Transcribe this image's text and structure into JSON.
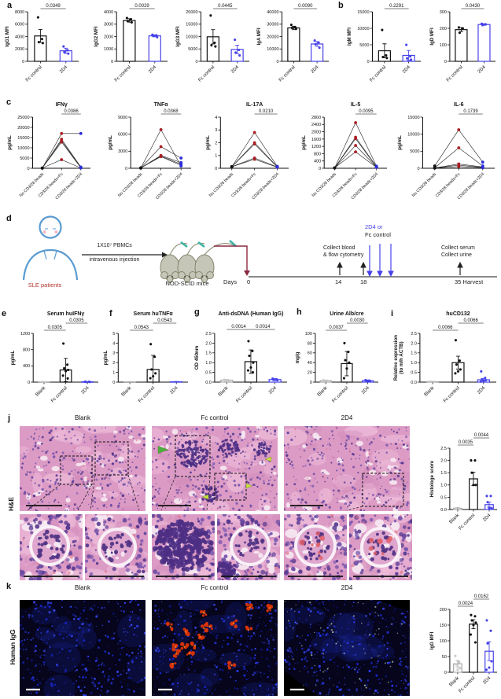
{
  "panels": {
    "a": "a",
    "b": "b",
    "c": "c",
    "d": "d",
    "e": "e",
    "f": "f",
    "g": "g",
    "h": "h",
    "i": "i",
    "j": "j",
    "k": "k"
  },
  "colors": {
    "accent_blue": "#4742e8",
    "red_dot": "#aa1f24",
    "maroon": "#8b2842",
    "green_arrow": "#4cae3e",
    "yellow_green_arrow": "#c6e33c",
    "human_outline": "#5b9bd0",
    "sle_red": "#b5332e"
  },
  "schematic": {
    "patients_label": "SLE patients",
    "injection_line1": "1X10⁷ PBMCs",
    "injection_line2": "intravenous injection",
    "mice_label": "NOD-SCID mice",
    "days_label": "Days",
    "day0": "0",
    "day14": "14",
    "day18": "18",
    "day35": "35 Harvest",
    "collect_blood_line1": "Collect blood",
    "collect_blood_line2": "& flow cytometry",
    "treatment_line1": "2D4 or",
    "treatment_line2": "Fc control",
    "collect_end_line1": "Collect serum",
    "collect_end_line2": "Collect urine"
  },
  "histology": {
    "row_label": "H&E",
    "columns": [
      "Blank",
      "Fc control",
      "2D4"
    ]
  },
  "fluorescence": {
    "row_label": "Human IgG",
    "columns": [
      "Blank",
      "Fc control",
      "2D4"
    ]
  },
  "chart_data": [
    {
      "id": "igg1",
      "type": "bar",
      "ylabel": "IgG1 MFI",
      "ylim": [
        0,
        8000
      ],
      "yticks": [
        "0",
        "2000",
        "4000",
        "6000",
        "8000"
      ],
      "categories": [
        "Fc control",
        "2D4"
      ],
      "colors": [
        "#111111",
        "#4742e8"
      ],
      "values": [
        4100,
        1700
      ],
      "errors": [
        1050,
        420
      ],
      "dots": [
        [
          7100,
          3600,
          3100,
          2950
        ],
        [
          2400,
          1800,
          1500,
          1250
        ]
      ],
      "pvalues": [
        {
          "from": 0,
          "to": 1,
          "label": "0.0349"
        }
      ]
    },
    {
      "id": "igg2",
      "type": "bar",
      "ylabel": "IgG2 MFI",
      "ylim": [
        0,
        4000
      ],
      "yticks": [
        "0",
        "1000",
        "2000",
        "3000",
        "4000"
      ],
      "categories": [
        "Fc control",
        "2D4"
      ],
      "colors": [
        "#111111",
        "#4742e8"
      ],
      "values": [
        3300,
        2060
      ],
      "errors": [
        140,
        80
      ],
      "dots": [
        [
          3500,
          3400,
          3250,
          3150
        ],
        [
          2150,
          2100,
          2050,
          1950
        ]
      ],
      "pvalues": [
        {
          "from": 0,
          "to": 1,
          "label": "0.0029"
        }
      ]
    },
    {
      "id": "igg3",
      "type": "bar",
      "ylabel": "IgG3 MFI",
      "ylim": [
        0,
        20000
      ],
      "yticks": [
        "0",
        "5000",
        "10000",
        "15000",
        "20000"
      ],
      "categories": [
        "Fc control",
        "2D4"
      ],
      "colors": [
        "#111111",
        "#4742e8"
      ],
      "values": [
        9900,
        4800
      ],
      "errors": [
        2900,
        1700
      ],
      "dots": [
        [
          18500,
          7500,
          6500,
          6000
        ],
        [
          8700,
          4600,
          3500,
          2400
        ]
      ],
      "pvalues": [
        {
          "from": 0,
          "to": 1,
          "label": "0.0445"
        }
      ]
    },
    {
      "id": "iga",
      "type": "bar",
      "ylabel": "IgA MFI",
      "ylim": [
        0,
        40000
      ],
      "yticks": [
        "0",
        "10000",
        "20000",
        "30000",
        "40000"
      ],
      "categories": [
        "Fc control",
        "2D4"
      ],
      "colors": [
        "#111111",
        "#4742e8"
      ],
      "values": [
        27000,
        14000
      ],
      "errors": [
        1400,
        1900
      ],
      "dots": [
        [
          29500,
          27500,
          27000,
          26200
        ],
        [
          16800,
          15200,
          13800,
          11000
        ]
      ],
      "pvalues": [
        {
          "from": 0,
          "to": 1,
          "label": "0.0090"
        }
      ]
    },
    {
      "id": "igm",
      "type": "bar",
      "ylabel": "IgM MFI",
      "ylim": [
        0,
        15000
      ],
      "yticks": [
        "0",
        "5000",
        "10000",
        "15000"
      ],
      "categories": [
        "Fc control",
        "2D4"
      ],
      "colors": [
        "#111111",
        "#4742e8"
      ],
      "values": [
        3200,
        1800
      ],
      "errors": [
        2100,
        1500
      ],
      "dots": [
        [
          9500,
          1800,
          1300,
          1000
        ],
        [
          5000,
          1500,
          900,
          500
        ]
      ],
      "pvalues": [
        {
          "from": 0,
          "to": 1,
          "label": "0.2291"
        }
      ]
    },
    {
      "id": "igd",
      "type": "bar",
      "ylabel": "IgD MFI",
      "ylim": [
        0,
        300
      ],
      "yticks": [
        "0",
        "100",
        "200",
        "300"
      ],
      "categories": [
        "Fc control",
        "2D4"
      ],
      "colors": [
        "#111111",
        "#4742e8"
      ],
      "values": [
        192,
        223
      ],
      "errors": [
        12,
        5
      ],
      "dots": [
        [
          205,
          200,
          173
        ],
        [
          228,
          224,
          219
        ]
      ],
      "pvalues": [
        {
          "from": 0,
          "to": 1,
          "label": "0.0430"
        }
      ]
    },
    {
      "id": "ifng",
      "type": "paired",
      "title": "IFNγ",
      "ylabel": "pg/mL",
      "ylim": [
        0,
        25000
      ],
      "yticks": [
        "0",
        "5000",
        "10000",
        "15000",
        "20000",
        "25000"
      ],
      "categories": [
        "No CD3/28 beads",
        "CD3/28 beads+Fc",
        "CD3/28 beads+2D4"
      ],
      "point_colors": [
        "#111111",
        "#aa1f24",
        "#2b2bdc"
      ],
      "lines": [
        [
          100,
          17000,
          17000
        ],
        [
          100,
          14200,
          600
        ],
        [
          100,
          13500,
          400
        ],
        [
          100,
          12800,
          250
        ],
        [
          100,
          4200,
          150
        ]
      ],
      "pvalues": [
        {
          "from": 1,
          "to": 2,
          "label": "0.0386"
        }
      ]
    },
    {
      "id": "tnfa",
      "type": "paired",
      "title": "TNFα",
      "ylabel": "pg/mL",
      "ylim": [
        0,
        9000
      ],
      "yticks": [
        "0",
        "3000",
        "6000",
        "9000"
      ],
      "categories": [
        "No CD3/28 beads",
        "CD3/28 beads+Fc",
        "CD3/28 beads+2D4"
      ],
      "point_colors": [
        "#111111",
        "#aa1f24",
        "#2b2bdc"
      ],
      "lines": [
        [
          50,
          6800,
          400
        ],
        [
          50,
          3800,
          1800
        ],
        [
          50,
          2250,
          1000
        ],
        [
          50,
          2150,
          700
        ],
        [
          50,
          2050,
          500
        ]
      ],
      "pvalues": [
        {
          "from": 1,
          "to": 2,
          "label": "0.0368"
        }
      ]
    },
    {
      "id": "il17a",
      "type": "paired",
      "title": "IL-17A",
      "ylabel": "pg/mL",
      "ylim": [
        0,
        4
      ],
      "yticks": [
        "0",
        "1",
        "2",
        "3",
        "4"
      ],
      "categories": [
        "No CD3/28 beads",
        "CD3/28 beads+Fc",
        "CD3/28 beads+2D4"
      ],
      "point_colors": [
        "#111111",
        "#aa1f24",
        "#2b2bdc"
      ],
      "lines": [
        [
          0.12,
          2.8,
          0.15
        ],
        [
          0.12,
          2.0,
          0.12
        ],
        [
          0.12,
          1.9,
          0.1
        ],
        [
          0.12,
          0.8,
          0.1
        ],
        [
          0.12,
          0.7,
          0.08
        ]
      ],
      "pvalues": [
        {
          "from": 1,
          "to": 2,
          "label": "0.0210"
        }
      ]
    },
    {
      "id": "il5",
      "type": "paired",
      "title": "IL-5",
      "ylabel": "pg/mL",
      "ylim": [
        0,
        2800
      ],
      "yticks": [
        "0",
        "400",
        "800",
        "1200",
        "1600",
        "2000",
        "2400",
        "2800"
      ],
      "categories": [
        "No CD3/28 beads",
        "CD3/28 beads+Fc",
        "CD3/28 beads+2D4"
      ],
      "point_colors": [
        "#111111",
        "#aa1f24",
        "#2b2bdc"
      ],
      "lines": [
        [
          20,
          2500,
          120
        ],
        [
          20,
          1700,
          90
        ],
        [
          20,
          1620,
          70
        ],
        [
          20,
          1250,
          60
        ],
        [
          20,
          900,
          50
        ]
      ],
      "pvalues": [
        {
          "from": 1,
          "to": 2,
          "label": "0.0095"
        }
      ]
    },
    {
      "id": "il6",
      "type": "paired",
      "title": "IL-6",
      "ylabel": "pg/mL",
      "ylim": [
        0,
        15000
      ],
      "yticks": [
        "0",
        "5000",
        "10000",
        "15000"
      ],
      "categories": [
        "No CD3/28 beads",
        "CD3/28 beads+Fc",
        "CD3/28 beads+2D4"
      ],
      "point_colors": [
        "#111111",
        "#aa1f24",
        "#2b2bdc"
      ],
      "lines": [
        [
          700,
          11300,
          1800
        ],
        [
          150,
          6000,
          700
        ],
        [
          100,
          1250,
          400
        ],
        [
          80,
          900,
          250
        ],
        [
          60,
          500,
          150
        ]
      ],
      "pvalues": [
        {
          "from": 1,
          "to": 2,
          "label": "0.1739"
        }
      ]
    },
    {
      "id": "huifng",
      "type": "bar",
      "title": "Serum huIFNγ",
      "ylabel": "pg/mL",
      "ylim": [
        0,
        1200
      ],
      "yticks": [
        "0",
        "400",
        "800",
        "1200"
      ],
      "categories": [
        "Blank",
        "Fc control",
        "2D4"
      ],
      "colors": [
        "#a8a8a8",
        "#111111",
        "#4742e8"
      ],
      "dot_colors": [
        "#c9c9c9",
        "#111111",
        "#4742e8"
      ],
      "values": [
        4,
        300,
        8
      ],
      "errors": [
        2,
        285,
        5
      ],
      "dots": [
        [
          3,
          2
        ],
        [
          950,
          430,
          340,
          300,
          270,
          160,
          90
        ],
        [
          12,
          9,
          6,
          4
        ]
      ],
      "pvalues": [
        {
          "from": 0,
          "to": 1,
          "label": "0.0305"
        },
        {
          "from": 1,
          "to": 2,
          "label": "0.0305"
        }
      ]
    },
    {
      "id": "hutnfa",
      "type": "bar",
      "title": "Serum huTNFα",
      "ylabel": "pg/mL",
      "ylim": [
        0,
        5
      ],
      "yticks": [
        "0",
        "1",
        "2",
        "3",
        "4",
        "5"
      ],
      "categories": [
        "Blank",
        "Fc control",
        "2D4"
      ],
      "colors": [
        "#a8a8a8",
        "#111111",
        "#4742e8"
      ],
      "dot_colors": [
        "#c9c9c9",
        "#111111",
        "#4742e8"
      ],
      "values": [
        0.02,
        1.3,
        0.04
      ],
      "errors": [
        0.01,
        1.45,
        0.02
      ],
      "dots": [
        [],
        [
          3.9,
          2.6,
          1.3,
          0.9,
          0.6,
          0.4
        ],
        []
      ],
      "pvalues": [
        {
          "from": 0,
          "to": 1,
          "label": "0.0543"
        },
        {
          "from": 1,
          "to": 2,
          "label": "0.0543"
        }
      ]
    },
    {
      "id": "dsdna",
      "type": "bar",
      "title": "Anti-dsDNA (Human IgG)",
      "ylabel": "OD 450nm",
      "ylim": [
        0,
        2.5
      ],
      "yticks": [
        "0.0",
        "0.5",
        "1.0",
        "1.5",
        "2.0",
        "2.5"
      ],
      "same_height": true,
      "categories": [
        "Blank",
        "Fc control",
        "2D4"
      ],
      "colors": [
        "#a8a8a8",
        "#111111",
        "#4742e8"
      ],
      "dot_colors": [
        "#c9c9c9",
        "#111111",
        "#4742e8"
      ],
      "values": [
        0.1,
        1.05,
        0.13
      ],
      "errors": [
        0.03,
        0.6,
        0.05
      ],
      "dots": [
        [
          0.12,
          0.1,
          0.09,
          0.08
        ],
        [
          2.1,
          1.6,
          1.35,
          1.0,
          0.75,
          0.6,
          0.5
        ],
        [
          0.18,
          0.15,
          0.12,
          0.1
        ]
      ],
      "pvalues": [
        {
          "from": 0,
          "to": 1,
          "label": "0.0014"
        },
        {
          "from": 1,
          "to": 2,
          "label": "0.0014"
        }
      ]
    },
    {
      "id": "urine",
      "type": "bar",
      "title": "Urine Alb/cre",
      "ylabel": "mg/g",
      "ylim": [
        0,
        100
      ],
      "yticks": [
        "0",
        "20",
        "40",
        "60",
        "80",
        "100"
      ],
      "categories": [
        "Blank",
        "Fc control",
        "2D4"
      ],
      "colors": [
        "#a8a8a8",
        "#111111",
        "#4742e8"
      ],
      "dot_colors": [
        "#c9c9c9",
        "#111111",
        "#4742e8"
      ],
      "values": [
        3,
        38,
        3
      ],
      "errors": [
        1,
        25,
        1.5
      ],
      "dots": [
        [
          4,
          3,
          3,
          2
        ],
        [
          80,
          62,
          45,
          40,
          28,
          8
        ],
        [
          4,
          3,
          3,
          2
        ]
      ],
      "pvalues": [
        {
          "from": 0,
          "to": 1,
          "label": "0.0037"
        },
        {
          "from": 1,
          "to": 2,
          "label": "0.0030"
        }
      ]
    },
    {
      "id": "cd132",
      "type": "bar",
      "title": "huCD132",
      "ylabel": "Relative expression",
      "ylabel2": "(to m/h ACTB)",
      "ylim": [
        0,
        2.5
      ],
      "yticks": [
        "0.0",
        "0.5",
        "1.0",
        "1.5",
        "2.0",
        "2.5"
      ],
      "categories": [
        "Blank",
        "Fc control",
        "2D4"
      ],
      "colors": [
        "#a8a8a8",
        "#111111",
        "#4742e8"
      ],
      "dot_colors": [
        "#c9c9c9",
        "#111111",
        "#4742e8"
      ],
      "values": [
        0.02,
        1.0,
        0.12
      ],
      "errors": [
        0.01,
        0.33,
        0.06
      ],
      "dots": [
        [
          0.03,
          0.02
        ],
        [
          2.15,
          1.1,
          0.9,
          0.65,
          0.55,
          0.45
        ],
        [
          0.55,
          0.22,
          0.15,
          0.1,
          0.06,
          0.03
        ]
      ],
      "pvalues": [
        {
          "from": 0,
          "to": 1,
          "label": "0.0066"
        },
        {
          "from": 1,
          "to": 2,
          "label": "0.0066"
        }
      ]
    },
    {
      "id": "histscore",
      "type": "bar",
      "ylabel": "Histologe score",
      "ylim": [
        0,
        2.5
      ],
      "yticks": [
        "0.0",
        "0.5",
        "1.0",
        "1.5",
        "2.0",
        "2.5"
      ],
      "categories": [
        "Blank",
        "Fc control",
        "2D4"
      ],
      "colors": [
        "#a8a8a8",
        "#111111",
        "#4742e8"
      ],
      "dot_colors": [
        "#c9c9c9",
        "#111111",
        "#4742e8"
      ],
      "values": [
        0.05,
        1.25,
        0.2
      ],
      "errors": [
        0.03,
        0.27,
        0.1
      ],
      "dots": [
        [
          0.05,
          0.05,
          0.05
        ],
        [
          2.0,
          2.0,
          1.5,
          1.0,
          1.0
        ],
        [
          0.55,
          0.55,
          0.3,
          0.05,
          0.05
        ]
      ],
      "pvalues": [
        {
          "from": 0,
          "to": 1,
          "label": "0.0035"
        },
        {
          "from": 1,
          "to": 2,
          "label": "0.0044"
        }
      ]
    },
    {
      "id": "iggmfi",
      "type": "bar",
      "ylabel": "IgG MFI",
      "ylim": [
        0,
        200
      ],
      "yticks": [
        "0",
        "50",
        "100",
        "150",
        "200"
      ],
      "categories": [
        "Blank",
        "Fc control",
        "2D4"
      ],
      "colors": [
        "#a8a8a8",
        "#111111",
        "#4742e8"
      ],
      "dot_colors": [
        "#c9c9c9",
        "#111111",
        "#4742e8"
      ],
      "values": [
        27,
        153,
        67
      ],
      "errors": [
        10,
        14,
        30
      ],
      "dots": [
        [
          52,
          32,
          25,
          13,
          8
        ],
        [
          182,
          178,
          165,
          158,
          150,
          120,
          95
        ],
        [
          165,
          132,
          92,
          35,
          15,
          8
        ]
      ],
      "pvalues": [
        {
          "from": 0,
          "to": 1,
          "label": "0.0024"
        },
        {
          "from": 1,
          "to": 2,
          "label": "0.0162"
        }
      ]
    }
  ]
}
